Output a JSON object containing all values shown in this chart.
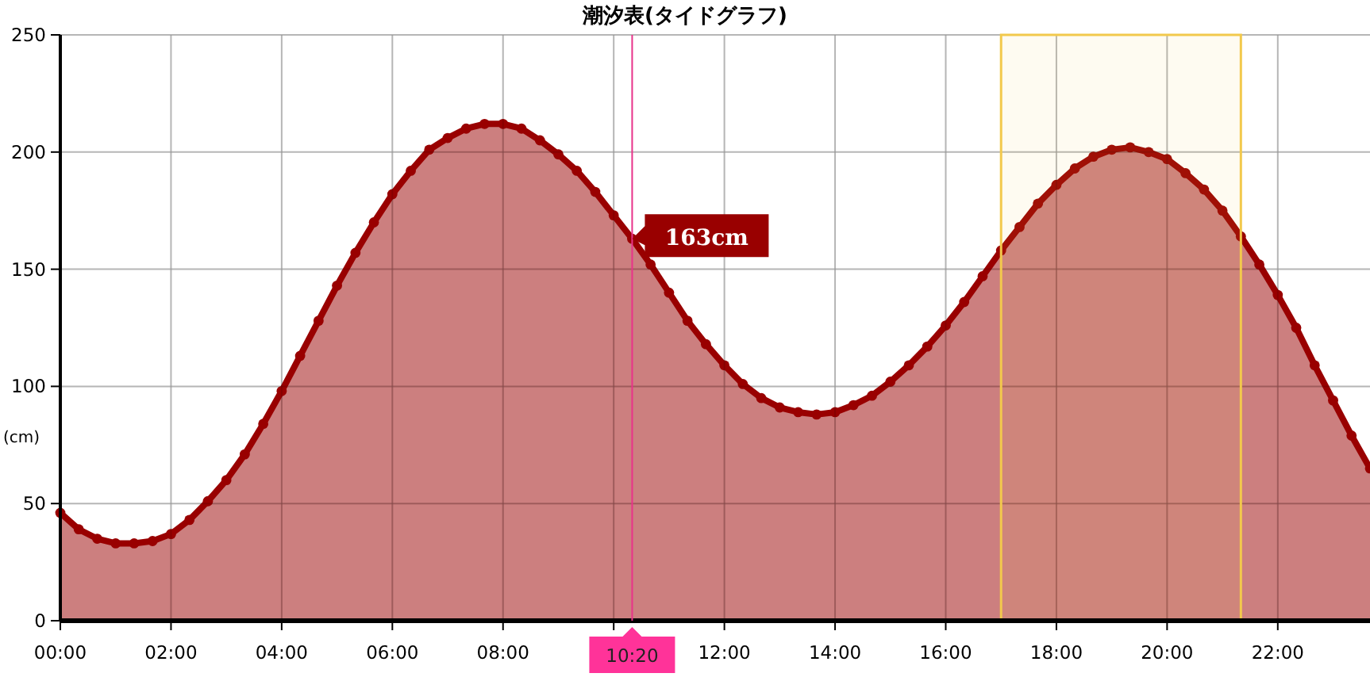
{
  "chart_data": {
    "type": "area",
    "title": "潮汐表(タイドグラフ)",
    "ylabel": "(cm)",
    "x": [
      0,
      0.3333,
      0.6667,
      1,
      1.3333,
      1.6667,
      2,
      2.3333,
      2.6667,
      3,
      3.3333,
      3.6667,
      4,
      4.3333,
      4.6667,
      5,
      5.3333,
      5.6667,
      6,
      6.3333,
      6.6667,
      7,
      7.3333,
      7.6667,
      8,
      8.3333,
      8.6667,
      9,
      9.3333,
      9.6667,
      10,
      10.3333,
      10.6667,
      11,
      11.3333,
      11.6667,
      12,
      12.3333,
      12.6667,
      13,
      13.3333,
      13.6667,
      14,
      14.3333,
      14.6667,
      15,
      15.3333,
      15.6667,
      16,
      16.3333,
      16.6667,
      17,
      17.3333,
      17.6667,
      18,
      18.3333,
      18.6667,
      19,
      19.3333,
      19.6667,
      20,
      20.3333,
      20.6667,
      21,
      21.3333,
      21.6667,
      22,
      22.3333,
      22.6667,
      23,
      23.3333,
      23.6667
    ],
    "series": [
      {
        "color": "#990000",
        "values": [
          46,
          39,
          35,
          33,
          33,
          34,
          37,
          43,
          51,
          60,
          71,
          84,
          98,
          113,
          128,
          143,
          157,
          170,
          182,
          192,
          201,
          206,
          210,
          212,
          212,
          210,
          205,
          199,
          192,
          183,
          173,
          163,
          152,
          140,
          128,
          118,
          109,
          101,
          95,
          91,
          89,
          88,
          89,
          92,
          96,
          102,
          109,
          117,
          126,
          136,
          147,
          158,
          168,
          178,
          186,
          193,
          198,
          201,
          202,
          200,
          197,
          191,
          184,
          175,
          164,
          152,
          139,
          125,
          109,
          94,
          79,
          65
        ]
      }
    ],
    "xlim": [
      0,
      23.6667
    ],
    "xticks": [
      {
        "value": 0,
        "label": "00:00"
      },
      {
        "value": 2,
        "label": "02:00"
      },
      {
        "value": 4,
        "label": "04:00"
      },
      {
        "value": 6,
        "label": "06:00"
      },
      {
        "value": 8,
        "label": "08:00"
      },
      {
        "value": 10,
        "label": null
      },
      {
        "value": 12,
        "label": "12:00"
      },
      {
        "value": 14,
        "label": "14:00"
      },
      {
        "value": 16,
        "label": "16:00"
      },
      {
        "value": 18,
        "label": "18:00"
      },
      {
        "value": 20,
        "label": "20:00"
      },
      {
        "value": 22,
        "label": "22:00"
      }
    ],
    "ylim": [
      0,
      250
    ],
    "yticks": [
      0,
      50,
      100,
      150,
      200,
      250
    ],
    "grid": true,
    "marker": "circle",
    "line_style": "solid",
    "ref_lines": [
      {
        "axis": "x",
        "value": 10.3333,
        "label": "10:20",
        "color": "#e8338a"
      }
    ],
    "bands": [
      {
        "axis": "x",
        "from": 17,
        "to": 21.3333,
        "color": "#f2c94c"
      }
    ],
    "annotations": [
      {
        "text": "163cm",
        "x": 10.3333,
        "y": 163
      }
    ]
  }
}
